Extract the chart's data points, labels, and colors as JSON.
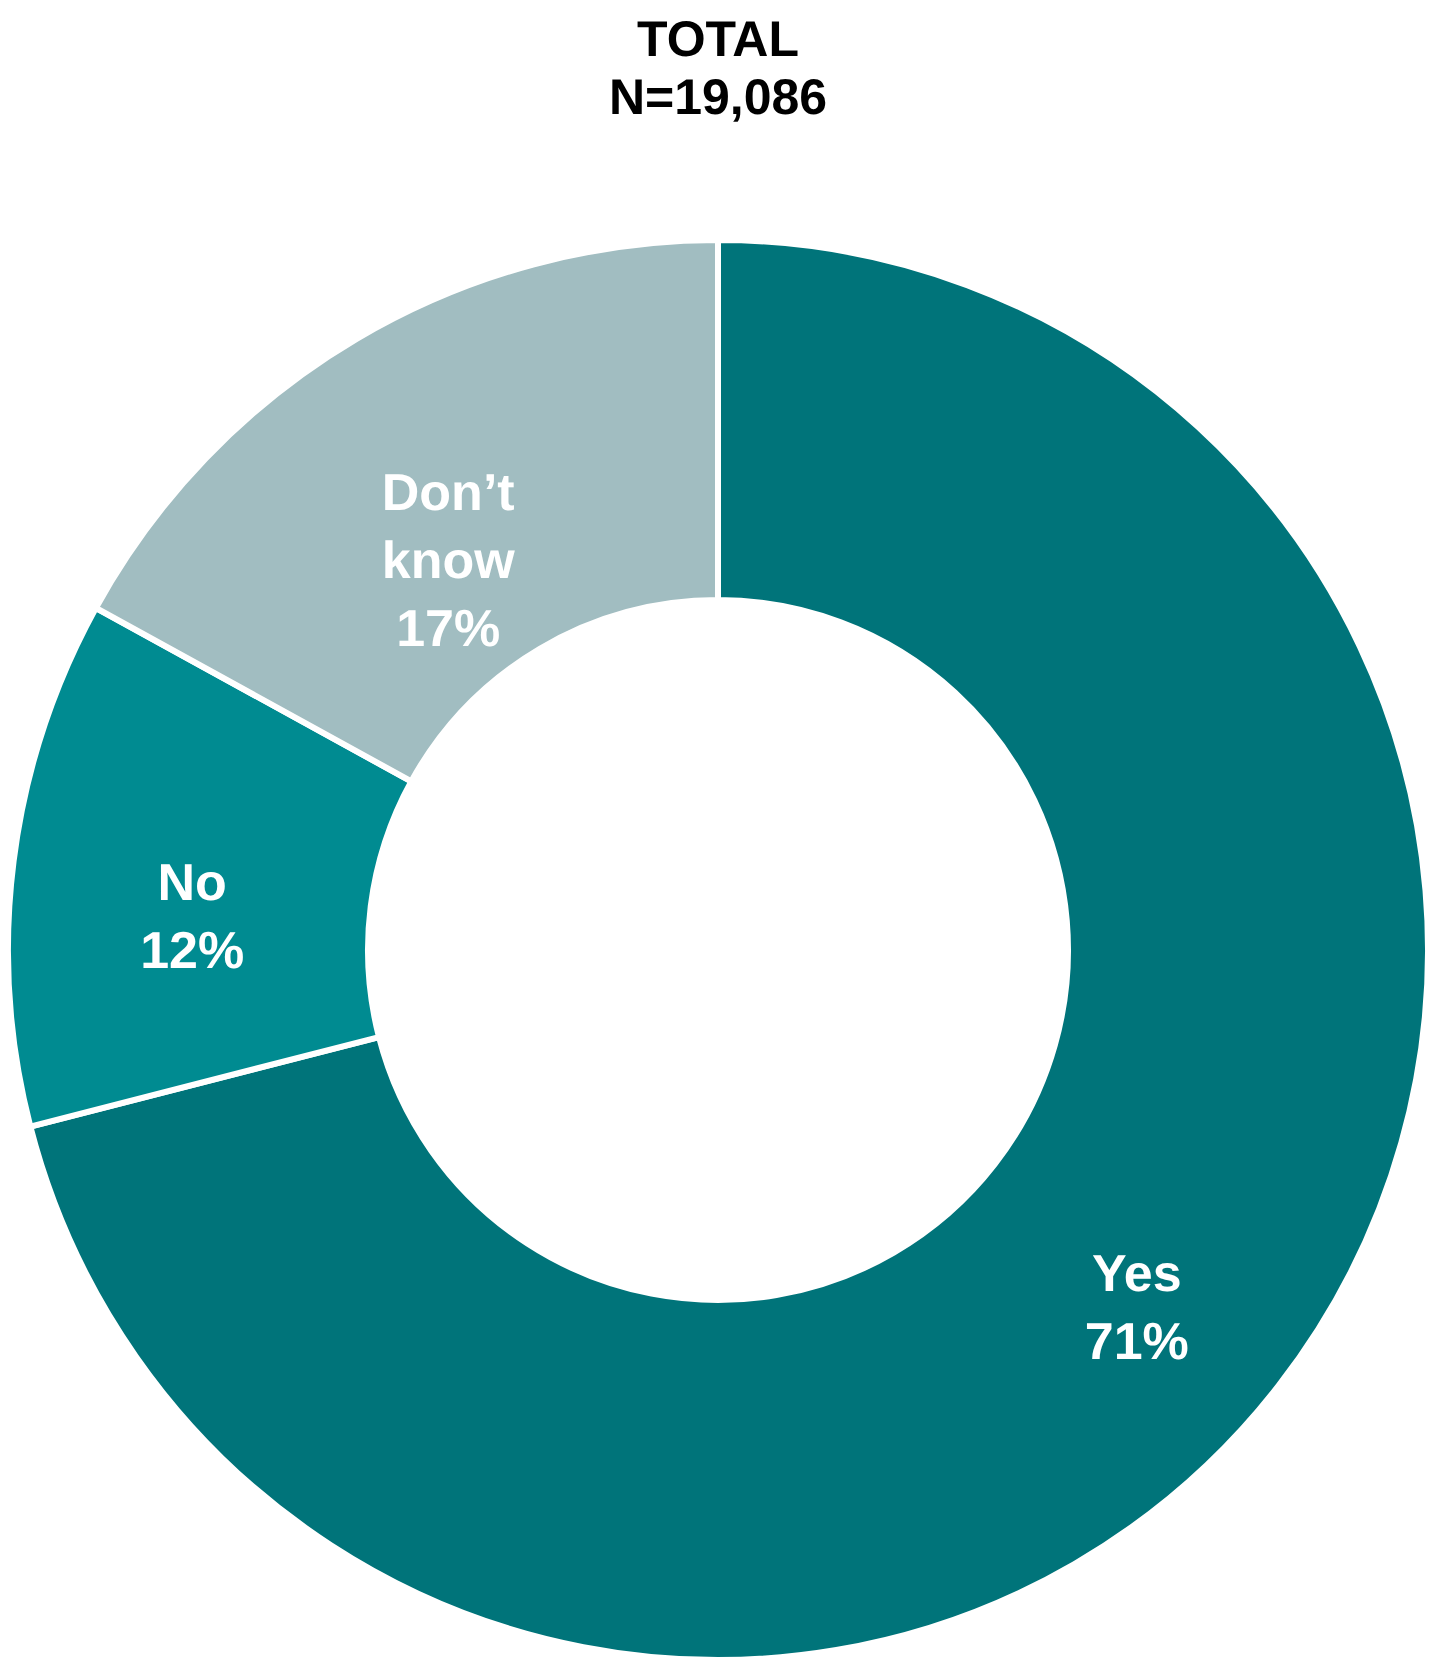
{
  "chart_data": {
    "type": "donut",
    "title": "TOTAL",
    "subtitle": "N=19,086",
    "categories": [
      "Yes",
      "No",
      "Don’t know"
    ],
    "values": [
      71,
      12,
      17
    ],
    "value_labels": [
      "71%",
      "12%",
      "17%"
    ],
    "colors": [
      "#00747a",
      "#008b91",
      "#a1bdc1"
    ],
    "legend": false
  }
}
